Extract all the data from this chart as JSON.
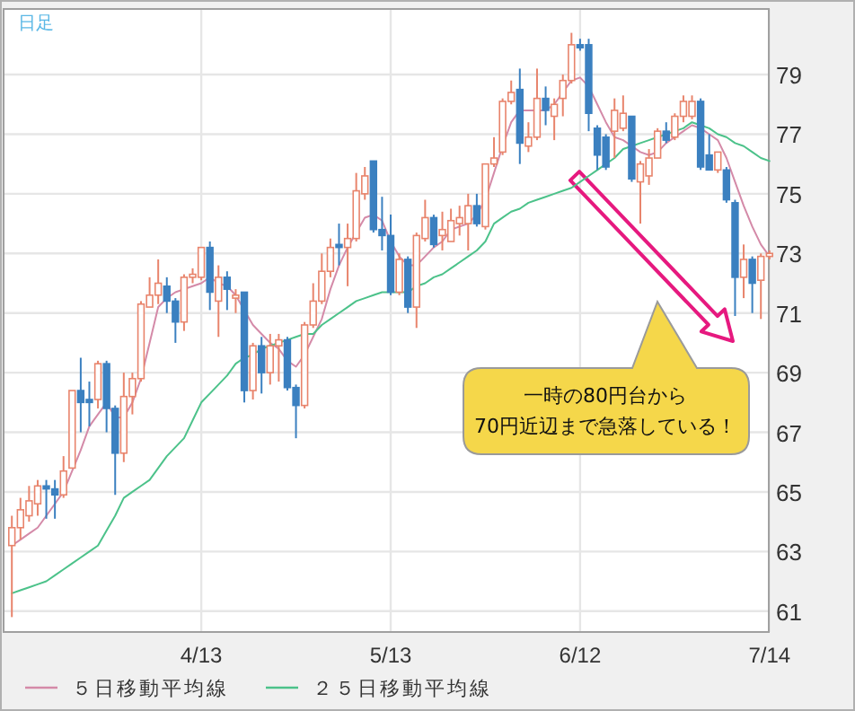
{
  "chart_data": {
    "type": "candlestick",
    "title": "日足",
    "categories": [
      null,
      null,
      null,
      null,
      null,
      null,
      null,
      null,
      null,
      null,
      null,
      null,
      null,
      null,
      null,
      null,
      null,
      null,
      null,
      null,
      null,
      null,
      "4/13",
      null,
      null,
      null,
      null,
      null,
      null,
      null,
      null,
      null,
      null,
      null,
      null,
      null,
      null,
      null,
      null,
      null,
      null,
      null,
      null,
      null,
      "5/13",
      null,
      null,
      null,
      null,
      null,
      null,
      null,
      null,
      null,
      null,
      null,
      null,
      null,
      null,
      null,
      null,
      null,
      null,
      null,
      null,
      null,
      "6/12",
      null,
      null,
      null,
      null,
      null,
      null,
      null,
      null,
      null,
      null,
      null,
      null,
      null,
      null,
      null,
      null,
      null,
      null,
      null,
      null,
      null,
      "7/14"
    ],
    "ohlc": [
      [
        63.2,
        64.2,
        60.8,
        63.8
      ],
      [
        63.8,
        64.8,
        63.4,
        64.4
      ],
      [
        64.2,
        65.2,
        64.0,
        64.7
      ],
      [
        64.6,
        65.4,
        64.2,
        65.2
      ],
      [
        65.2,
        65.4,
        64.1,
        65.1
      ],
      [
        65.1,
        65.4,
        64.1,
        64.9
      ],
      [
        64.9,
        66.2,
        64.8,
        65.7
      ],
      [
        65.8,
        68.4,
        65.8,
        68.4
      ],
      [
        68.4,
        69.5,
        67.0,
        68.0
      ],
      [
        68.1,
        68.7,
        67.2,
        68.0
      ],
      [
        68.1,
        69.4,
        67.8,
        69.3
      ],
      [
        69.3,
        69.4,
        67.0,
        67.8
      ],
      [
        67.8,
        67.9,
        64.9,
        66.3
      ],
      [
        66.3,
        69.0,
        66.0,
        68.2
      ],
      [
        68.2,
        69.0,
        67.6,
        68.8
      ],
      [
        68.8,
        71.4,
        68.7,
        71.3
      ],
      [
        71.2,
        72.2,
        71.2,
        71.6
      ],
      [
        71.6,
        72.8,
        71.3,
        72.0
      ],
      [
        71.9,
        72.2,
        71.0,
        71.4
      ],
      [
        71.4,
        71.5,
        70.0,
        70.7
      ],
      [
        70.7,
        72.3,
        70.4,
        72.2
      ],
      [
        72.2,
        72.5,
        72.0,
        72.3
      ],
      [
        72.2,
        73.2,
        72.1,
        73.2
      ],
      [
        73.2,
        73.4,
        71.1,
        71.7
      ],
      [
        71.4,
        72.6,
        70.2,
        72.2
      ],
      [
        72.2,
        72.4,
        71.1,
        71.8
      ],
      [
        71.5,
        71.8,
        71.0,
        71.6
      ],
      [
        71.7,
        71.7,
        68.0,
        68.4
      ],
      [
        68.4,
        70.0,
        68.1,
        69.9
      ],
      [
        69.9,
        70.2,
        68.3,
        69.0
      ],
      [
        69.0,
        70.3,
        68.6,
        69.9
      ],
      [
        69.9,
        70.3,
        68.7,
        70.1
      ],
      [
        70.1,
        70.2,
        68.4,
        68.5
      ],
      [
        68.5,
        68.6,
        66.8,
        67.9
      ],
      [
        67.9,
        70.7,
        67.8,
        70.6
      ],
      [
        70.6,
        72.0,
        70.5,
        71.4
      ],
      [
        71.4,
        73.0,
        71.3,
        72.4
      ],
      [
        72.4,
        73.5,
        72.2,
        73.2
      ],
      [
        73.3,
        74.0,
        72.6,
        73.2
      ],
      [
        73.2,
        74.0,
        71.9,
        73.5
      ],
      [
        73.5,
        75.7,
        73.4,
        75.1
      ],
      [
        75.0,
        75.9,
        74.8,
        75.6
      ],
      [
        76.1,
        76.1,
        73.7,
        73.8
      ],
      [
        73.8,
        74.9,
        73.1,
        73.6
      ],
      [
        73.6,
        74.3,
        71.6,
        71.7
      ],
      [
        71.7,
        73.0,
        71.6,
        72.8
      ],
      [
        72.8,
        72.9,
        71.0,
        71.2
      ],
      [
        71.2,
        73.7,
        70.5,
        73.6
      ],
      [
        73.5,
        74.8,
        73.4,
        74.2
      ],
      [
        74.2,
        74.3,
        73.2,
        73.3
      ],
      [
        73.6,
        74.4,
        73.1,
        73.8
      ],
      [
        73.4,
        74.5,
        73.4,
        74.1
      ],
      [
        74.0,
        74.6,
        73.6,
        74.2
      ],
      [
        74.0,
        75.0,
        73.1,
        74.6
      ],
      [
        74.6,
        75.0,
        73.9,
        74.0
      ],
      [
        73.9,
        76.0,
        73.8,
        76.0
      ],
      [
        76.0,
        76.9,
        75.9,
        76.2
      ],
      [
        76.4,
        78.2,
        76.3,
        78.1
      ],
      [
        78.1,
        78.8,
        78.0,
        78.4
      ],
      [
        78.5,
        79.2,
        76.0,
        76.7
      ],
      [
        76.6,
        77.4,
        76.4,
        76.9
      ],
      [
        76.9,
        79.2,
        76.8,
        78.2
      ],
      [
        78.2,
        78.6,
        77.3,
        77.8
      ],
      [
        77.6,
        78.2,
        76.8,
        78.0
      ],
      [
        78.2,
        79.0,
        77.6,
        78.8
      ],
      [
        78.8,
        80.4,
        78.7,
        80.0
      ],
      [
        80.0,
        80.2,
        79.8,
        79.9
      ],
      [
        80.0,
        80.2,
        77.1,
        77.7
      ],
      [
        77.2,
        77.3,
        75.8,
        76.3
      ],
      [
        76.9,
        77.0,
        75.8,
        75.9
      ],
      [
        77.1,
        78.2,
        76.2,
        77.8
      ],
      [
        77.2,
        78.3,
        77.1,
        77.7
      ],
      [
        77.6,
        77.6,
        75.4,
        75.5
      ],
      [
        75.4,
        76.1,
        74.0,
        76.0
      ],
      [
        75.6,
        76.5,
        75.3,
        76.2
      ],
      [
        76.2,
        77.2,
        76.2,
        77.1
      ],
      [
        77.1,
        77.4,
        76.7,
        76.8
      ],
      [
        76.9,
        77.7,
        76.8,
        77.6
      ],
      [
        77.6,
        78.3,
        77.4,
        78.1
      ],
      [
        77.6,
        78.3,
        77.5,
        78.1
      ],
      [
        78.1,
        78.2,
        75.8,
        75.9
      ],
      [
        76.3,
        77.0,
        75.8,
        75.8
      ],
      [
        75.8,
        76.4,
        75.7,
        76.4
      ],
      [
        75.8,
        75.9,
        74.7,
        74.8
      ],
      [
        74.7,
        74.8,
        70.9,
        72.2
      ],
      [
        72.2,
        73.3,
        71.5,
        72.8
      ],
      [
        72.8,
        72.9,
        71.0,
        72.0
      ],
      [
        72.1,
        73.0,
        70.8,
        72.9
      ],
      [
        72.9,
        73.1,
        72.8,
        73.0
      ]
    ],
    "series": [
      {
        "name": "５日移動平均線",
        "type": "line",
        "color": "#d48aa8",
        "values": [
          63.2,
          63.4,
          63.6,
          63.8,
          64.2,
          64.6,
          65.0,
          65.7,
          66.4,
          67.2,
          67.6,
          68.0,
          67.5,
          67.5,
          68.0,
          68.8,
          70.0,
          71.2,
          71.5,
          71.7,
          71.8,
          71.9,
          72.0,
          72.2,
          72.0,
          71.9,
          71.6,
          71.1,
          70.6,
          70.3,
          70.0,
          69.8,
          69.4,
          69.2,
          69.6,
          70.2,
          70.8,
          71.8,
          72.6,
          73.2,
          73.7,
          74.2,
          74.3,
          74.1,
          73.4,
          72.9,
          72.6,
          72.6,
          72.9,
          73.2,
          73.4,
          73.8,
          73.9,
          74.0,
          74.3,
          74.8,
          75.7,
          76.6,
          77.4,
          77.8,
          77.8,
          77.8,
          77.8,
          78.0,
          78.4,
          78.8,
          78.9,
          78.6,
          78.0,
          77.4,
          76.9,
          76.8,
          76.6,
          76.4,
          76.3,
          76.4,
          76.7,
          76.9,
          77.1,
          77.3,
          77.2,
          77.0,
          76.8,
          76.2,
          75.4,
          74.6,
          73.9,
          73.3,
          72.9
        ]
      },
      {
        "name": "２５日移動平均線",
        "type": "line",
        "color": "#4cc28a",
        "values": [
          61.6,
          61.7,
          61.8,
          61.9,
          62.0,
          62.2,
          62.4,
          62.6,
          62.8,
          63.0,
          63.2,
          63.7,
          64.2,
          64.8,
          65.0,
          65.2,
          65.4,
          65.8,
          66.2,
          66.5,
          66.8,
          67.4,
          68.0,
          68.3,
          68.6,
          68.9,
          69.3,
          69.5,
          69.6,
          69.8,
          69.9,
          70.0,
          70.1,
          70.2,
          70.3,
          70.3,
          70.6,
          70.8,
          71.0,
          71.2,
          71.4,
          71.5,
          71.6,
          71.7,
          71.7,
          71.7,
          71.7,
          71.9,
          72.0,
          72.2,
          72.3,
          72.5,
          72.7,
          72.9,
          73.1,
          73.4,
          74.0,
          74.2,
          74.4,
          74.5,
          74.7,
          74.8,
          74.9,
          75.0,
          75.1,
          75.2,
          75.4,
          75.6,
          75.8,
          76.0,
          76.2,
          76.5,
          76.6,
          76.7,
          76.8,
          76.9,
          77.0,
          77.1,
          77.2,
          77.4,
          77.3,
          77.2,
          77.0,
          76.9,
          76.7,
          76.6,
          76.4,
          76.2,
          76.1
        ]
      }
    ],
    "ylim": [
      60.3,
      81.2
    ],
    "yticks": [
      61,
      63,
      65,
      67,
      69,
      71,
      73,
      75,
      77,
      79
    ],
    "grid": true,
    "legend": "bottom",
    "annotations": [
      "一時の80円台から\n70円近辺まで急落している！"
    ]
  }
}
